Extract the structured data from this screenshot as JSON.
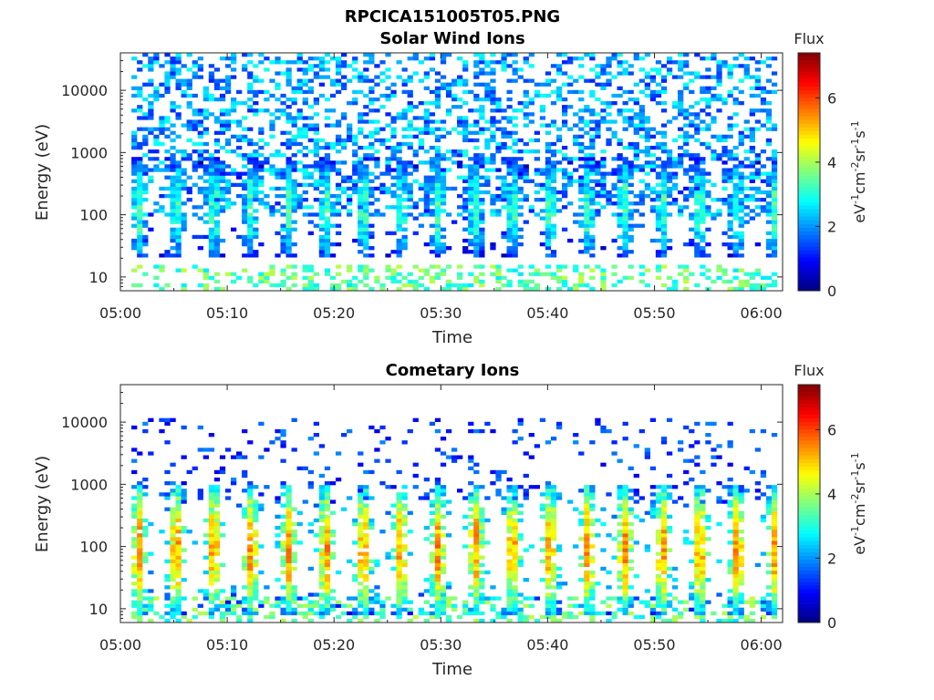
{
  "figure": {
    "title": "RPCICA151005T05.PNG"
  },
  "colors": {
    "axis": "#262626",
    "background": "#ffffff"
  },
  "chart_data": [
    {
      "type": "heatmap",
      "title": "Solar Wind Ions",
      "xlabel": "Time",
      "ylabel": "Energy (eV)",
      "x_ticks": [
        "05:00",
        "05:10",
        "05:20",
        "05:30",
        "05:40",
        "05:50",
        "06:00"
      ],
      "y_ticks": [
        "10",
        "100",
        "1000",
        "10000"
      ],
      "y_scale": "log",
      "ylim": [
        6,
        40000
      ],
      "xlim": [
        "05:00",
        "06:02"
      ],
      "colorbar": {
        "label": "Flux",
        "unit_base": "eV",
        "unit_parts": [
          "-1",
          "cm",
          "-2",
          "sr",
          "-1",
          "s",
          "-1"
        ],
        "ticks": [
          "0",
          "2",
          "4",
          "6"
        ],
        "range": [
          0,
          7.4
        ],
        "colormap": "jet"
      },
      "pattern": {
        "peak_flux": 3.2,
        "burst_period_min": 3.5,
        "burst_energy_range_eV": [
          20,
          800
        ],
        "background_flux": 2.3,
        "background_energy_range_eV": [
          100,
          40000
        ]
      }
    },
    {
      "type": "heatmap",
      "title": "Cometary Ions",
      "xlabel": "Time",
      "ylabel": "Energy (eV)",
      "x_ticks": [
        "05:00",
        "05:10",
        "05:20",
        "05:30",
        "05:40",
        "05:50",
        "06:00"
      ],
      "y_ticks": [
        "10",
        "100",
        "1000",
        "10000"
      ],
      "y_scale": "log",
      "ylim": [
        6,
        40000
      ],
      "xlim": [
        "05:00",
        "06:02"
      ],
      "colorbar": {
        "label": "Flux",
        "unit_base": "eV",
        "unit_parts": [
          "-1",
          "cm",
          "-2",
          "sr",
          "-1",
          "s",
          "-1"
        ],
        "ticks": [
          "0",
          "2",
          "4",
          "6"
        ],
        "range": [
          0,
          7.4
        ],
        "colormap": "jet"
      },
      "pattern": {
        "peak_flux": 5.4,
        "burst_period_min": 3.5,
        "burst_energy_range_eV": [
          8,
          1000
        ],
        "background_flux": 1.5,
        "background_energy_range_eV": [
          500,
          12000
        ]
      }
    }
  ]
}
